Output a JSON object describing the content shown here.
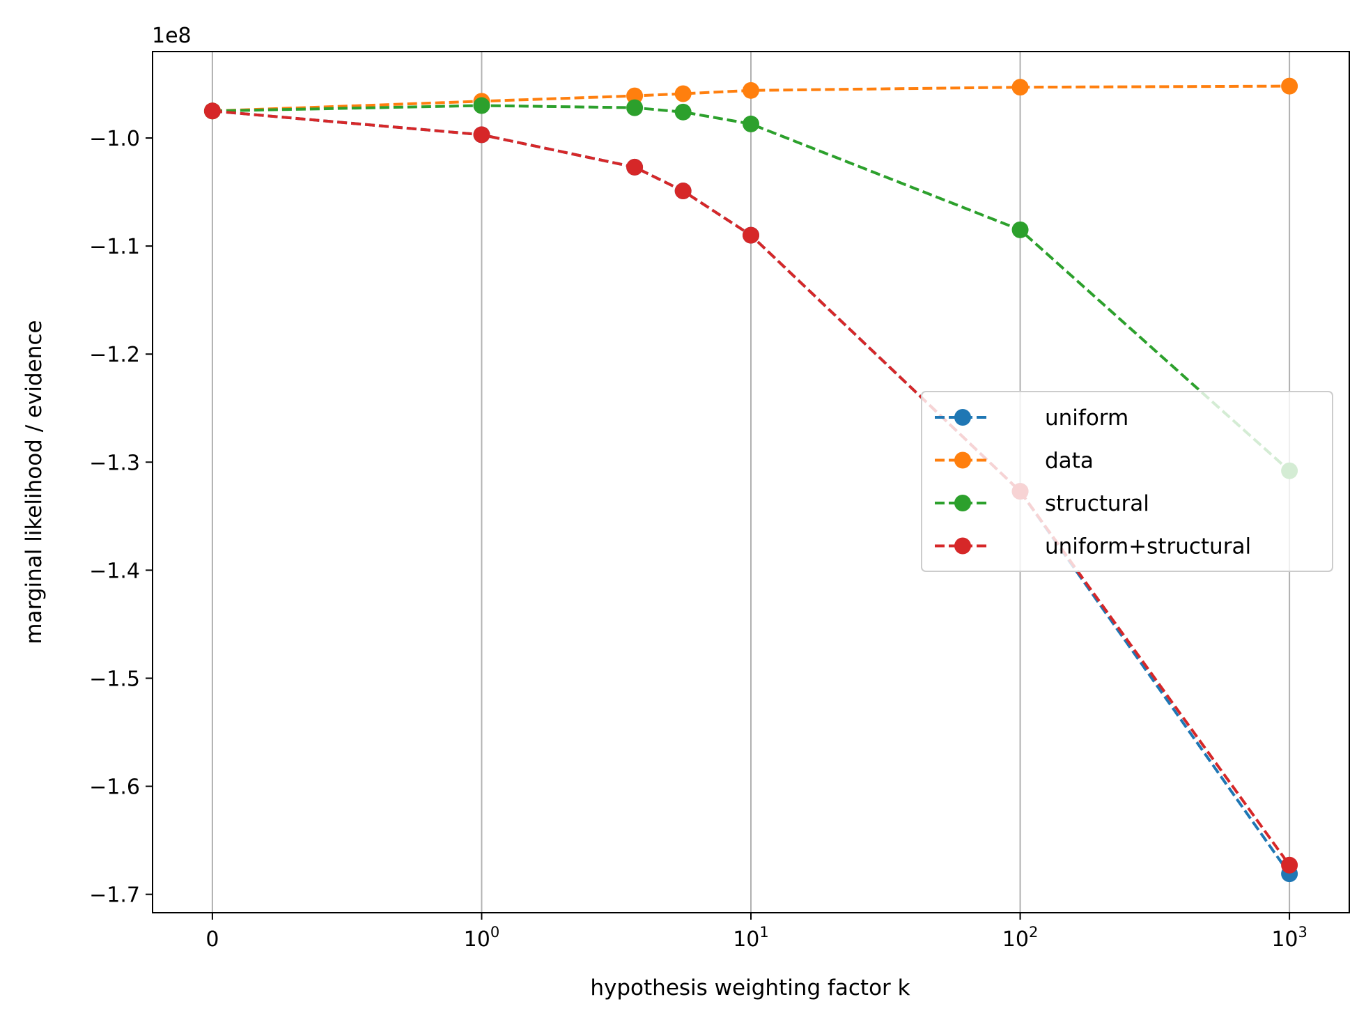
{
  "chart_data": {
    "type": "line",
    "xscale": "symlog",
    "xlabel": "hypothesis weighting factor k",
    "ylabel": "marginal likelihood / evidence",
    "y_offset_text": "1e8",
    "grid": "x-only",
    "legend_position": "center-right",
    "x": [
      0,
      1,
      3.7,
      5.6,
      10,
      100,
      1000
    ],
    "ylim": [
      -1.717,
      -0.92
    ],
    "xticks": [
      {
        "value": 0,
        "base": "0",
        "exp": ""
      },
      {
        "value": 1,
        "base": "10",
        "exp": "0"
      },
      {
        "value": 10,
        "base": "10",
        "exp": "1"
      },
      {
        "value": 100,
        "base": "10",
        "exp": "2"
      },
      {
        "value": 1000,
        "base": "10",
        "exp": "3"
      }
    ],
    "yticks": [
      {
        "value": -1.0,
        "label": "−1.0"
      },
      {
        "value": -1.1,
        "label": "−1.1"
      },
      {
        "value": -1.2,
        "label": "−1.2"
      },
      {
        "value": -1.3,
        "label": "−1.3"
      },
      {
        "value": -1.4,
        "label": "−1.4"
      },
      {
        "value": -1.5,
        "label": "−1.5"
      },
      {
        "value": -1.6,
        "label": "−1.6"
      },
      {
        "value": -1.7,
        "label": "−1.7"
      }
    ],
    "series": [
      {
        "name": "uniform",
        "color": "#1f77b4",
        "values": [
          -0.975,
          -0.997,
          -1.027,
          -1.049,
          -1.09,
          -1.327,
          -1.681
        ]
      },
      {
        "name": "data",
        "color": "#ff7f0e",
        "values": [
          -0.975,
          -0.966,
          -0.961,
          -0.959,
          -0.956,
          -0.953,
          -0.952
        ]
      },
      {
        "name": "structural",
        "color": "#2ca02c",
        "values": [
          -0.975,
          -0.97,
          -0.972,
          -0.976,
          -0.987,
          -1.085,
          -1.308
        ]
      },
      {
        "name": "uniform+structural",
        "color": "#d62728",
        "values": [
          -0.975,
          -0.997,
          -1.027,
          -1.049,
          -1.09,
          -1.327,
          -1.673
        ]
      }
    ]
  }
}
